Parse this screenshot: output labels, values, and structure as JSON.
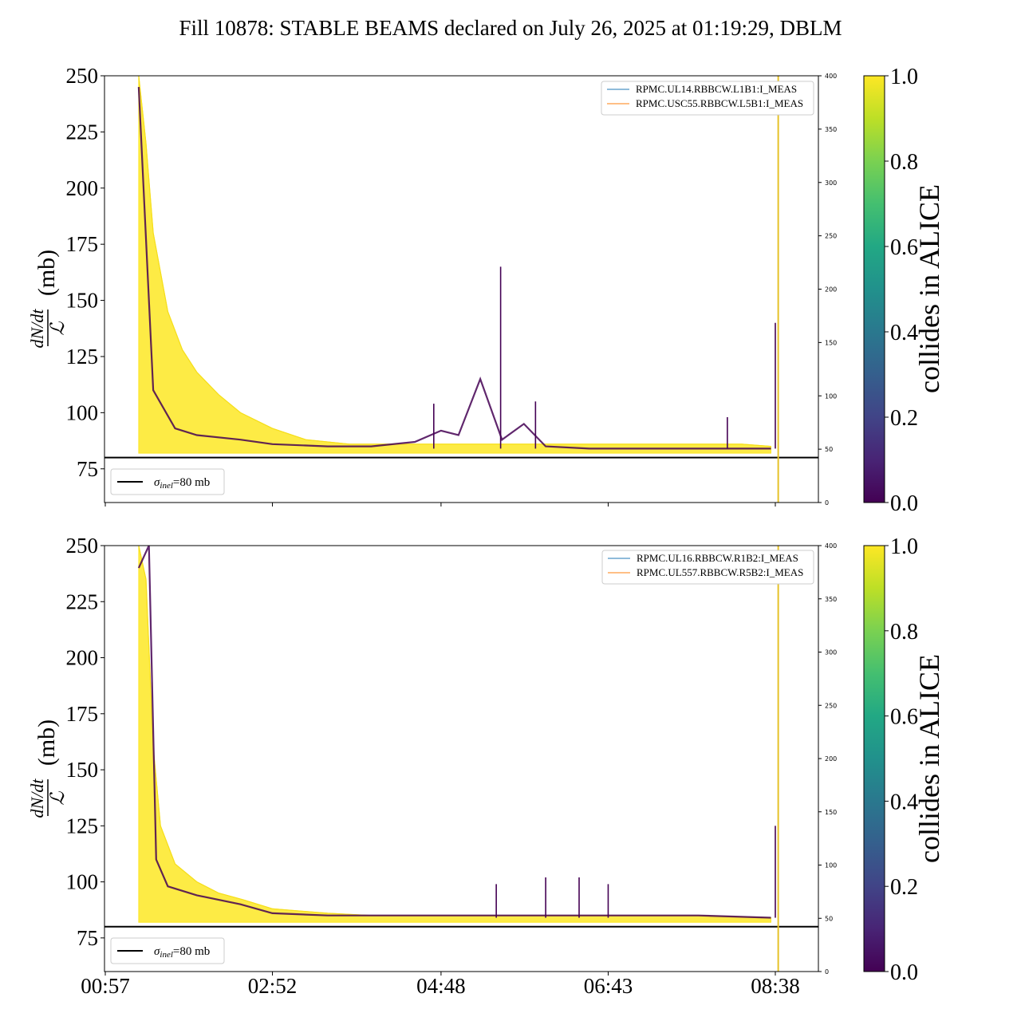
{
  "title": "Fill 10878: STABLE BEAMS declared on July 26, 2025 at 01:19:29, DBLM",
  "colors": {
    "yellow": "#fde725",
    "purple": "#440154",
    "blue_legend": "#1f77b4",
    "orange_legend": "#ff7f0e",
    "vline": "#e6c229",
    "threshold": "#000000"
  },
  "y_label_numerator": "dN/dt",
  "y_label_denominator": "ℒ",
  "y_label_unit": "(mb)",
  "colorbar": {
    "label": "collides in ALICE",
    "ticks": [
      "0.0",
      "0.2",
      "0.4",
      "0.6",
      "0.8",
      "1.0"
    ],
    "colormap": "viridis",
    "range": [
      0.0,
      1.0
    ]
  },
  "chart_data": [
    {
      "type": "line",
      "panel": "top",
      "ylim": [
        60,
        250
      ],
      "yticks": [
        75,
        100,
        125,
        150,
        175,
        200,
        225,
        250
      ],
      "y2lim": [
        0,
        400
      ],
      "y2ticks": [
        0,
        50,
        100,
        150,
        200,
        250,
        300,
        350,
        400
      ],
      "xticks": [
        "00:57",
        "02:52",
        "04:48",
        "06:43",
        "08:38"
      ],
      "threshold": {
        "value": 80,
        "label_symbol": "σ",
        "label_sub": "inel",
        "label_rest": "=80 mb"
      },
      "legend": [
        "RPMC.UL14.RBBCW.L1B1:I_MEAS",
        "RPMC.USC55.RBBCW.L5B1:I_MEAS"
      ],
      "series": [
        {
          "name": "collides in ALICE = 1.0 (upper envelope)",
          "x": [
            "01:20",
            "01:25",
            "01:30",
            "01:40",
            "01:50",
            "02:00",
            "02:15",
            "02:30",
            "02:52",
            "03:15",
            "03:45",
            "04:15",
            "04:48",
            "05:15",
            "05:45",
            "06:15",
            "06:43",
            "07:15",
            "07:45",
            "08:15",
            "08:35"
          ],
          "values": [
            250,
            220,
            180,
            145,
            128,
            118,
            108,
            100,
            93,
            88,
            86,
            86,
            86,
            86,
            86,
            86,
            86,
            86,
            86,
            86,
            85
          ]
        },
        {
          "name": "collides in ALICE = 1.0 (lower envelope)",
          "x": [
            "01:20",
            "01:30",
            "02:00",
            "02:52",
            "03:45",
            "04:48",
            "05:45",
            "06:43",
            "07:45",
            "08:35"
          ],
          "values": [
            82,
            82,
            82,
            82,
            82,
            82,
            82,
            82,
            82,
            82
          ]
        },
        {
          "name": "collides in ALICE = 0.0",
          "x": [
            "01:20",
            "01:30",
            "01:45",
            "02:00",
            "02:30",
            "02:52",
            "03:30",
            "04:00",
            "04:30",
            "04:48",
            "05:00",
            "05:15",
            "05:30",
            "05:45",
            "06:00",
            "06:30",
            "06:43",
            "07:00",
            "07:30",
            "08:00",
            "08:20",
            "08:35"
          ],
          "values": [
            245,
            110,
            93,
            90,
            88,
            86,
            85,
            85,
            87,
            92,
            90,
            115,
            88,
            95,
            85,
            84,
            84,
            84,
            84,
            84,
            84,
            84
          ]
        }
      ],
      "spikes": [
        {
          "x": "04:43",
          "value": 104
        },
        {
          "x": "05:29",
          "value": 165
        },
        {
          "x": "05:53",
          "value": 105
        },
        {
          "x": "08:05",
          "value": 98
        },
        {
          "x": "08:38",
          "value": 140
        }
      ],
      "vline_x": "08:40"
    },
    {
      "type": "line",
      "panel": "bottom",
      "ylim": [
        60,
        250
      ],
      "yticks": [
        75,
        100,
        125,
        150,
        175,
        200,
        225,
        250
      ],
      "y2lim": [
        0,
        400
      ],
      "y2ticks": [
        0,
        50,
        100,
        150,
        200,
        250,
        300,
        350,
        400
      ],
      "xticks": [
        "00:57",
        "02:52",
        "04:48",
        "06:43",
        "08:38"
      ],
      "threshold": {
        "value": 80,
        "label_symbol": "σ",
        "label_sub": "inel",
        "label_rest": "=80 mb"
      },
      "legend": [
        "RPMC.UL16.RBBCW.R1B2:I_MEAS",
        "RPMC.UL557.RBBCW.R5B2:I_MEAS"
      ],
      "series": [
        {
          "name": "collides in ALICE = 1.0 (upper envelope)",
          "x": [
            "01:20",
            "01:25",
            "01:30",
            "01:35",
            "01:45",
            "02:00",
            "02:15",
            "02:32",
            "02:52",
            "03:30",
            "04:00",
            "04:48",
            "05:45",
            "06:43",
            "07:45",
            "08:35"
          ],
          "values": [
            250,
            235,
            160,
            125,
            108,
            100,
            95,
            92,
            88,
            86,
            85,
            85,
            85,
            85,
            85,
            84
          ]
        },
        {
          "name": "collides in ALICE = 1.0 (lower envelope)",
          "x": [
            "01:20",
            "02:00",
            "02:52",
            "04:48",
            "06:43",
            "08:35"
          ],
          "values": [
            82,
            82,
            82,
            82,
            82,
            82
          ]
        },
        {
          "name": "collides in ALICE = 0.0",
          "x": [
            "01:20",
            "01:27",
            "01:32",
            "01:40",
            "02:00",
            "02:30",
            "02:52",
            "03:30",
            "04:48",
            "05:45",
            "06:43",
            "07:45",
            "08:35"
          ],
          "values": [
            240,
            250,
            110,
            98,
            94,
            90,
            86,
            85,
            85,
            85,
            85,
            85,
            84
          ]
        }
      ],
      "spikes": [
        {
          "x": "05:26",
          "value": 99
        },
        {
          "x": "06:00",
          "value": 102
        },
        {
          "x": "06:23",
          "value": 102
        },
        {
          "x": "06:43",
          "value": 99
        },
        {
          "x": "08:38",
          "value": 125
        }
      ],
      "vline_x": "08:40"
    }
  ]
}
